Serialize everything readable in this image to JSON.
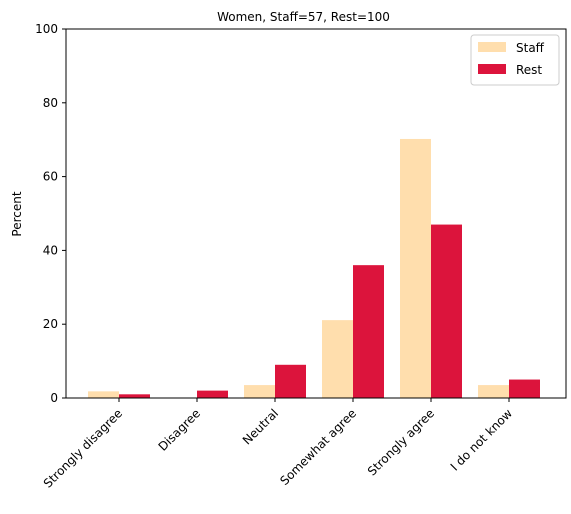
{
  "chart_data": {
    "type": "bar",
    "title": "Women, Staff=57, Rest=100",
    "xlabel": "",
    "ylabel": "Percent",
    "ylim": [
      0,
      100
    ],
    "yticks": [
      "0",
      "20",
      "40",
      "60",
      "80",
      "100"
    ],
    "categories": [
      "Strongly disagree",
      "Disagree",
      "Neutral",
      "Somewhat agree",
      "Strongly agree",
      "I do not know"
    ],
    "series": [
      {
        "name": "Staff",
        "color": "#FFDEAD",
        "values": [
          1.8,
          0,
          3.5,
          21.1,
          70.2,
          3.5
        ]
      },
      {
        "name": "Rest",
        "color": "#DC143C",
        "values": [
          1.0,
          2.0,
          9.0,
          36.0,
          47.0,
          5.0
        ]
      }
    ],
    "grid": false,
    "legend": "top-right"
  }
}
